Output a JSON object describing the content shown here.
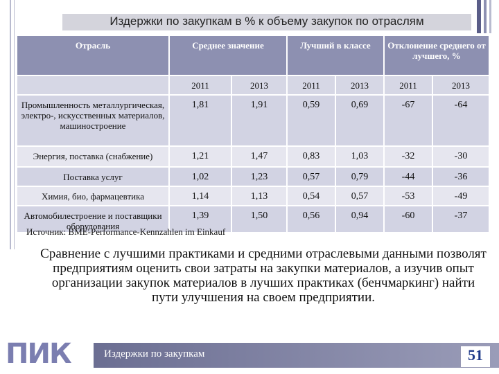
{
  "title": "Издержки по закупкам в % к объему закупок по отраслям",
  "table": {
    "headers": [
      "Отрасль",
      "Среднее значение",
      "Лучший в классе",
      "Отклонение среднего от лучшего, %"
    ],
    "years": [
      "2011",
      "2013",
      "2011",
      "2013",
      "2011",
      "2013"
    ],
    "rows": [
      [
        "Промышленность металлургическая, электро-, искусственных материалов, машиностроение",
        "1,81",
        "1,91",
        "0,59",
        "0,69",
        "-67",
        "-64"
      ],
      [
        "Энергия, поставка (снабжение)",
        "1,21",
        "1,47",
        "0,83",
        "1,03",
        "-32",
        "-30"
      ],
      [
        "Поставка услуг",
        "1,02",
        "1,23",
        "0,57",
        "0,79",
        "-44",
        "-36"
      ],
      [
        "Химия, био, фармацевтика",
        "1,14",
        "1,13",
        "0,54",
        "0,57",
        "-53",
        "-49"
      ],
      [
        "Автомобилестроение и поставщики оборудования",
        "1,39",
        "1,50",
        "0,56",
        "0,94",
        "-60",
        "-37"
      ]
    ]
  },
  "source": "Источник: BME-Performance-Kennzahlen im Einkauf",
  "body": "Сравнение с лучшими практиками и средними отраслевыми данными позволят предприятиям оценить свои затраты на закупки материалов, а изучив опыт организации закупок материалов в лучших практиках (бенчмаркинг) найти пути улучшения на своем предприятии.",
  "footer": {
    "logo": "ПИК",
    "text": "Издержки по закупкам",
    "page": "51"
  }
}
